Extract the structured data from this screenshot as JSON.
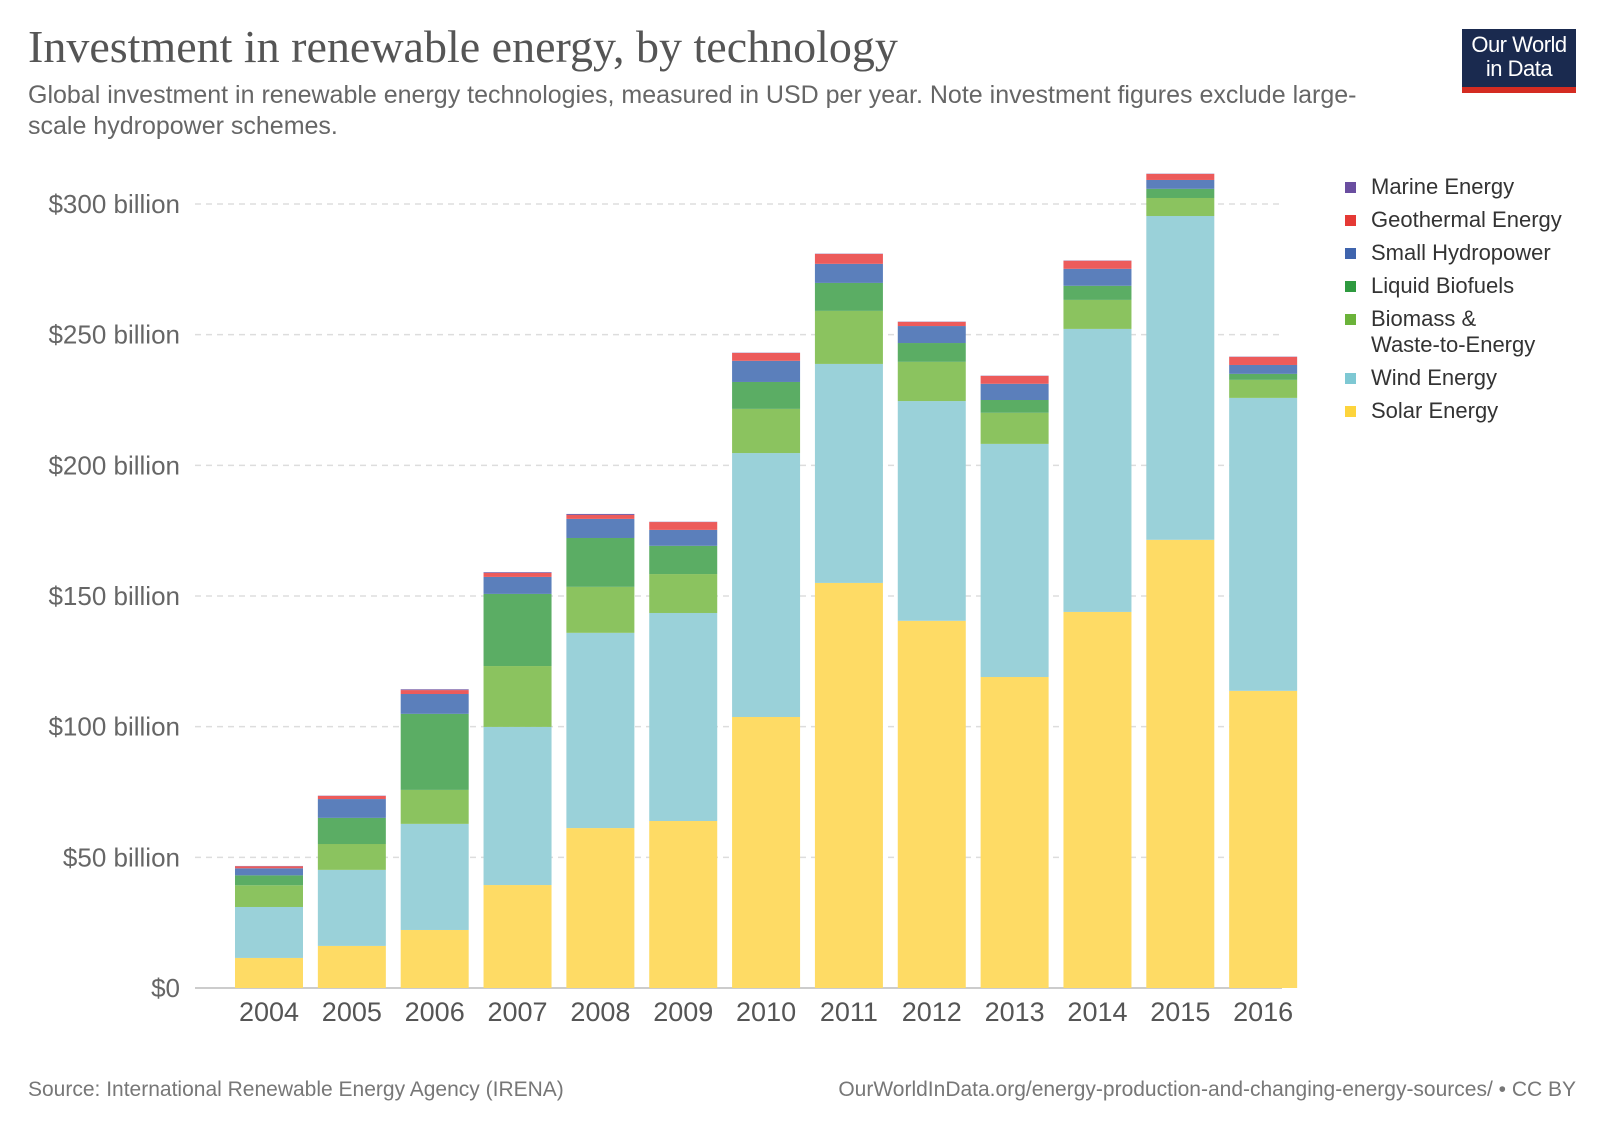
{
  "header": {
    "title": "Investment in renewable energy, by technology",
    "subtitle": "Global investment in renewable energy technologies, measured in USD per year. Note investment figures exclude large-scale hydropower schemes.",
    "logo_line1": "Our World",
    "logo_line2": "in Data"
  },
  "footer": {
    "source": "Source: International Renewable Energy Agency (IRENA)",
    "url_license": "OurWorldInData.org/energy-production-and-changing-energy-sources/ • CC BY"
  },
  "chart_data": {
    "type": "bar",
    "stacked": true,
    "title": "Investment in renewable energy, by technology",
    "xlabel": "",
    "ylabel": "",
    "ylim": [
      0,
      312
    ],
    "grid": true,
    "legend_position": "right",
    "yticks": [
      0,
      50,
      100,
      150,
      200,
      250,
      300
    ],
    "ytick_labels": [
      "$0",
      "$50 billion",
      "$100 billion",
      "$150 billion",
      "$200 billion",
      "$250 billion",
      "$300 billion"
    ],
    "categories": [
      "2004",
      "2005",
      "2006",
      "2007",
      "2008",
      "2009",
      "2010",
      "2011",
      "2012",
      "2013",
      "2014",
      "2015",
      "2016"
    ],
    "series": [
      {
        "name": "Solar Energy",
        "color": "#fedb65",
        "values": [
          11.5,
          16.1,
          22.2,
          39.4,
          61.2,
          63.9,
          103.7,
          155.0,
          140.5,
          119.0,
          143.9,
          171.5,
          113.7
        ]
      },
      {
        "name": "Wind Energy",
        "color": "#9ad1d9",
        "values": [
          19.5,
          29.1,
          40.6,
          60.5,
          74.7,
          79.6,
          101.0,
          83.8,
          84.1,
          89.2,
          108.3,
          123.9,
          112.1
        ]
      },
      {
        "name": "Biomass & Waste-to-Energy",
        "color": "#8bc35f",
        "values": [
          8.3,
          9.9,
          13.0,
          23.3,
          17.6,
          14.9,
          16.9,
          20.3,
          15.0,
          11.9,
          11.1,
          6.9,
          6.9
        ]
      },
      {
        "name": "Liquid Biofuels",
        "color": "#5bad64",
        "values": [
          3.8,
          10.0,
          29.1,
          27.6,
          18.7,
          10.8,
          10.3,
          10.7,
          7.2,
          4.9,
          5.4,
          3.5,
          2.3
        ]
      },
      {
        "name": "Small Hydropower",
        "color": "#5b7fbb",
        "values": [
          2.7,
          7.2,
          7.6,
          6.5,
          7.3,
          6.1,
          8.1,
          7.3,
          6.5,
          6.2,
          6.5,
          3.4,
          3.4
        ]
      },
      {
        "name": "Geothermal Energy",
        "color": "#ec5b5b",
        "values": [
          0.8,
          1.2,
          1.5,
          1.5,
          1.5,
          3.0,
          3.0,
          3.8,
          1.6,
          3.0,
          3.1,
          2.3,
          3.1
        ]
      },
      {
        "name": "Marine Energy",
        "color": "#7a62a8",
        "values": [
          0.1,
          0.1,
          0.3,
          0.3,
          0.4,
          0.1,
          0.1,
          0.1,
          0.1,
          0.1,
          0.1,
          0.1,
          0.1
        ]
      }
    ],
    "legend_order": [
      "Marine Energy",
      "Geothermal Energy",
      "Small Hydropower",
      "Liquid Biofuels",
      "Biomass & Waste-to-Energy",
      "Wind Energy",
      "Solar Energy"
    ],
    "legend_labels": {
      "Marine Energy": [
        "Marine Energy"
      ],
      "Geothermal Energy": [
        "Geothermal Energy"
      ],
      "Small Hydropower": [
        "Small Hydropower"
      ],
      "Liquid Biofuels": [
        "Liquid Biofuels"
      ],
      "Biomass & Waste-to-Energy": [
        "Biomass &",
        "Waste-to-Energy"
      ],
      "Wind Energy": [
        "Wind Energy"
      ],
      "Solar Energy": [
        "Solar Energy"
      ]
    },
    "legend_colors": {
      "Marine Energy": "#6a4ea0",
      "Geothermal Energy": "#e53935",
      "Small Hydropower": "#3f64ad",
      "Liquid Biofuels": "#2e9a3f",
      "Biomass & Waste-to-Energy": "#6bb33a",
      "Wind Energy": "#7ec8d3",
      "Solar Energy": "#fdd43c"
    }
  }
}
